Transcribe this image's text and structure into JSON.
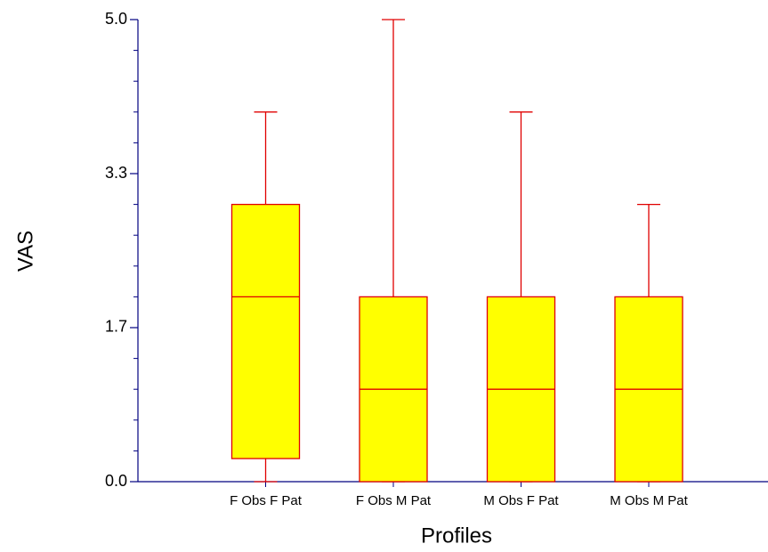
{
  "chart_data": {
    "type": "box",
    "x_label": "Profiles",
    "y_label": "VAS",
    "categories": [
      "F Obs F Pat",
      "F Obs M Pat",
      "M Obs F Pat",
      "M Obs M Pat"
    ],
    "boxes": [
      {
        "min": 0,
        "q1": 0.25,
        "median": 2,
        "q3": 3,
        "max": 4
      },
      {
        "min": 0,
        "q1": 0,
        "median": 1,
        "q3": 2,
        "max": 5
      },
      {
        "min": 0,
        "q1": 0,
        "median": 1,
        "q3": 2,
        "max": 4
      },
      {
        "min": 0,
        "q1": 0,
        "median": 1,
        "q3": 2,
        "max": 3
      }
    ],
    "fill_color": "#ffff00",
    "line_color": "#e00000",
    "axis_color": "#000080",
    "ylim": [
      0,
      5
    ],
    "yticks": [
      {
        "value": 0,
        "label": "0.0"
      },
      {
        "value": 1.6667,
        "label": "1.7"
      },
      {
        "value": 3.3333,
        "label": "3.3"
      },
      {
        "value": 5,
        "label": "5.0"
      }
    ],
    "yminor_ticks": [
      0.3333,
      0.6667,
      1,
      1.3333,
      2,
      2.3333,
      2.6667,
      3,
      3.6667,
      4,
      4.3333,
      4.6667
    ]
  }
}
